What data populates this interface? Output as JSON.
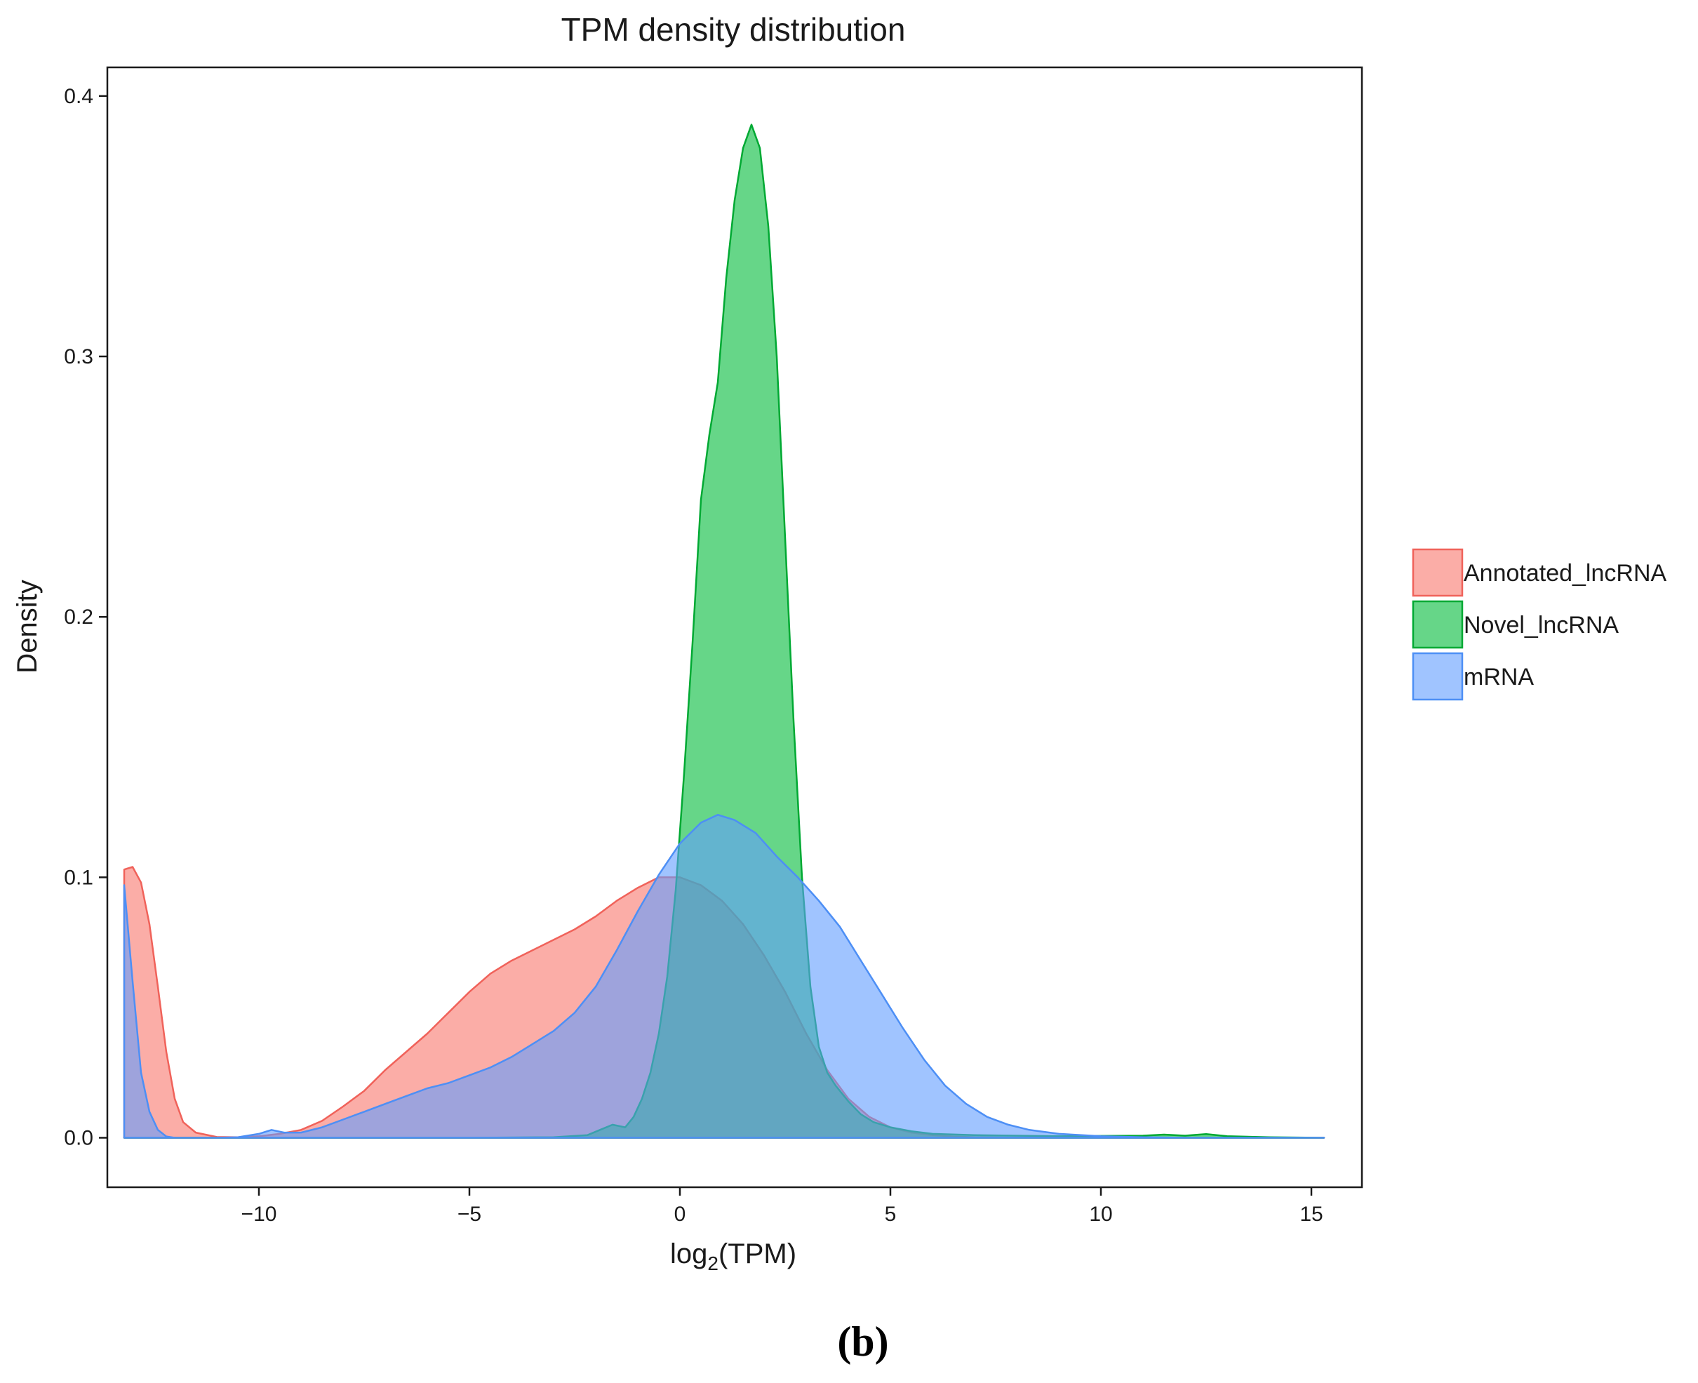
{
  "caption": "(b)",
  "chart_data": {
    "type": "area",
    "title": "TPM density distribution",
    "xlabel_prefix": "log",
    "xlabel_sub": "2",
    "xlabel_suffix": "(TPM)",
    "ylabel": "Density",
    "xlim": [
      -13.6,
      16.2
    ],
    "ylim": [
      -0.019,
      0.411
    ],
    "x_ticks": [
      {
        "value": -10,
        "label": "−10"
      },
      {
        "value": -5,
        "label": "−5"
      },
      {
        "value": 0,
        "label": "0"
      },
      {
        "value": 5,
        "label": "5"
      },
      {
        "value": 10,
        "label": "10"
      },
      {
        "value": 15,
        "label": "15"
      }
    ],
    "y_ticks": [
      {
        "value": 0.0,
        "label": "0.0"
      },
      {
        "value": 0.1,
        "label": "0.1"
      },
      {
        "value": 0.2,
        "label": "0.2"
      },
      {
        "value": 0.3,
        "label": "0.3"
      },
      {
        "value": 0.4,
        "label": "0.4"
      }
    ],
    "grid": false,
    "legend_position": "right",
    "series": [
      {
        "name": "Annotated_lncRNA",
        "legend_label": "Annotated_lncRNA",
        "fill": "#f8766d",
        "stroke": "#f0625a",
        "points": [
          [
            -13.2,
            0
          ],
          [
            -13.2,
            0.103
          ],
          [
            -13.0,
            0.104
          ],
          [
            -12.8,
            0.098
          ],
          [
            -12.6,
            0.082
          ],
          [
            -12.4,
            0.058
          ],
          [
            -12.2,
            0.033
          ],
          [
            -12.0,
            0.015
          ],
          [
            -11.8,
            0.006
          ],
          [
            -11.5,
            0.002
          ],
          [
            -11,
            0.0003
          ],
          [
            -10.5,
            0.0002
          ],
          [
            -10,
            0.0006
          ],
          [
            -9.5,
            0.0015
          ],
          [
            -9,
            0.003
          ],
          [
            -8.5,
            0.0065
          ],
          [
            -8,
            0.012
          ],
          [
            -7.5,
            0.018
          ],
          [
            -7,
            0.026
          ],
          [
            -6.5,
            0.033
          ],
          [
            -6,
            0.04
          ],
          [
            -5.5,
            0.048
          ],
          [
            -5,
            0.056
          ],
          [
            -4.5,
            0.063
          ],
          [
            -4,
            0.068
          ],
          [
            -3.5,
            0.072
          ],
          [
            -3,
            0.076
          ],
          [
            -2.5,
            0.08
          ],
          [
            -2,
            0.085
          ],
          [
            -1.5,
            0.091
          ],
          [
            -1,
            0.096
          ],
          [
            -0.5,
            0.1
          ],
          [
            0,
            0.1
          ],
          [
            0.5,
            0.097
          ],
          [
            1,
            0.091
          ],
          [
            1.5,
            0.082
          ],
          [
            2,
            0.07
          ],
          [
            2.5,
            0.056
          ],
          [
            3,
            0.04
          ],
          [
            3.5,
            0.026
          ],
          [
            4,
            0.015
          ],
          [
            4.5,
            0.008
          ],
          [
            5,
            0.004
          ],
          [
            5.5,
            0.002
          ],
          [
            6,
            0.001
          ],
          [
            6.5,
            0.0005
          ],
          [
            7,
            0.0002
          ],
          [
            8,
            0
          ],
          [
            10,
            0
          ],
          [
            15.3,
            0
          ],
          [
            15.3,
            0
          ]
        ]
      },
      {
        "name": "Novel_lncRNA",
        "legend_label": "Novel_lncRNA",
        "fill": "#00ba38",
        "stroke": "#00a933",
        "points": [
          [
            -13.2,
            0
          ],
          [
            -5,
            0
          ],
          [
            -3,
            0.0002
          ],
          [
            -2.2,
            0.001
          ],
          [
            -1.9,
            0.003
          ],
          [
            -1.6,
            0.005
          ],
          [
            -1.3,
            0.004
          ],
          [
            -1.1,
            0.008
          ],
          [
            -0.9,
            0.015
          ],
          [
            -0.7,
            0.025
          ],
          [
            -0.5,
            0.04
          ],
          [
            -0.3,
            0.062
          ],
          [
            -0.1,
            0.095
          ],
          [
            0.1,
            0.14
          ],
          [
            0.3,
            0.19
          ],
          [
            0.5,
            0.245
          ],
          [
            0.7,
            0.27
          ],
          [
            0.9,
            0.29
          ],
          [
            1.1,
            0.33
          ],
          [
            1.3,
            0.36
          ],
          [
            1.5,
            0.38
          ],
          [
            1.7,
            0.389
          ],
          [
            1.9,
            0.38
          ],
          [
            2.1,
            0.35
          ],
          [
            2.3,
            0.3
          ],
          [
            2.5,
            0.23
          ],
          [
            2.7,
            0.16
          ],
          [
            2.9,
            0.1
          ],
          [
            3.1,
            0.058
          ],
          [
            3.3,
            0.035
          ],
          [
            3.5,
            0.025
          ],
          [
            3.7,
            0.02
          ],
          [
            4,
            0.014
          ],
          [
            4.3,
            0.009
          ],
          [
            4.6,
            0.006
          ],
          [
            5,
            0.004
          ],
          [
            5.5,
            0.0025
          ],
          [
            6,
            0.0015
          ],
          [
            7,
            0.001
          ],
          [
            8,
            0.0008
          ],
          [
            9,
            0.0006
          ],
          [
            10,
            0.0007
          ],
          [
            11,
            0.0008
          ],
          [
            11.5,
            0.0012
          ],
          [
            12,
            0.0008
          ],
          [
            12.5,
            0.0014
          ],
          [
            13,
            0.0006
          ],
          [
            14,
            0.0002
          ],
          [
            15.3,
            0
          ],
          [
            15.3,
            0
          ]
        ]
      },
      {
        "name": "mRNA",
        "legend_label": "mRNA",
        "fill": "#619cff",
        "stroke": "#4d8ff5",
        "points": [
          [
            -13.2,
            0
          ],
          [
            -13.2,
            0.097
          ],
          [
            -13.0,
            0.06
          ],
          [
            -12.8,
            0.025
          ],
          [
            -12.6,
            0.01
          ],
          [
            -12.4,
            0.003
          ],
          [
            -12.2,
            0.0005
          ],
          [
            -12,
            0
          ],
          [
            -11,
            0
          ],
          [
            -10.5,
            0.0002
          ],
          [
            -10,
            0.0015
          ],
          [
            -9.7,
            0.003
          ],
          [
            -9.4,
            0.002
          ],
          [
            -9,
            0.002
          ],
          [
            -8.5,
            0.004
          ],
          [
            -8,
            0.007
          ],
          [
            -7.5,
            0.01
          ],
          [
            -7,
            0.013
          ],
          [
            -6.5,
            0.016
          ],
          [
            -6,
            0.019
          ],
          [
            -5.5,
            0.021
          ],
          [
            -5,
            0.024
          ],
          [
            -4.5,
            0.027
          ],
          [
            -4,
            0.031
          ],
          [
            -3.5,
            0.036
          ],
          [
            -3,
            0.041
          ],
          [
            -2.5,
            0.048
          ],
          [
            -2,
            0.058
          ],
          [
            -1.5,
            0.072
          ],
          [
            -1,
            0.087
          ],
          [
            -0.5,
            0.101
          ],
          [
            0,
            0.113
          ],
          [
            0.5,
            0.121
          ],
          [
            0.9,
            0.124
          ],
          [
            1.3,
            0.122
          ],
          [
            1.8,
            0.117
          ],
          [
            2.3,
            0.108
          ],
          [
            2.8,
            0.1
          ],
          [
            3.3,
            0.091
          ],
          [
            3.8,
            0.081
          ],
          [
            4.3,
            0.068
          ],
          [
            4.8,
            0.055
          ],
          [
            5.3,
            0.042
          ],
          [
            5.8,
            0.03
          ],
          [
            6.3,
            0.02
          ],
          [
            6.8,
            0.013
          ],
          [
            7.3,
            0.008
          ],
          [
            7.8,
            0.005
          ],
          [
            8.3,
            0.003
          ],
          [
            9,
            0.0015
          ],
          [
            10,
            0.0006
          ],
          [
            11,
            0.0002
          ],
          [
            12,
            0
          ],
          [
            15.3,
            0
          ],
          [
            15.3,
            0
          ]
        ]
      }
    ]
  }
}
